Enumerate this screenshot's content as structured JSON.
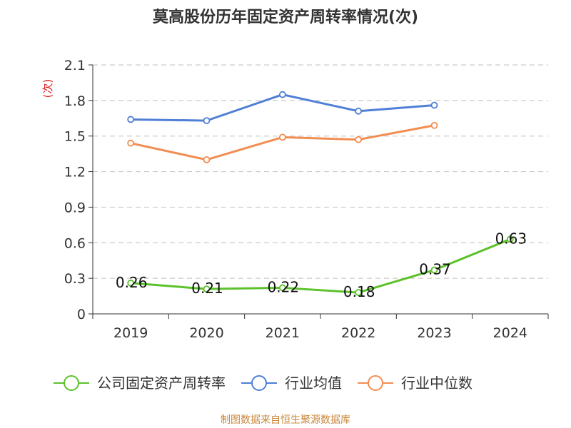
{
  "chart_data": {
    "type": "line",
    "title": "莫高股份历年固定资产周转率情况(次)",
    "ylabel": "(次)",
    "xlabel": "",
    "categories": [
      "2019",
      "2020",
      "2021",
      "2022",
      "2023",
      "2024"
    ],
    "ylim": [
      0,
      2.1
    ],
    "yticks": [
      0,
      0.3,
      0.6,
      0.9,
      1.2,
      1.5,
      1.8,
      2.1
    ],
    "ytick_labels": [
      "0",
      "0.3",
      "0.6",
      "0.9",
      "1.2",
      "1.5",
      "1.8",
      "2.1"
    ],
    "grid": true,
    "legend_position": "bottom",
    "series": [
      {
        "name": "公司固定资产周转率",
        "color": "#5cc22b",
        "values": [
          0.26,
          0.21,
          0.22,
          0.18,
          0.37,
          0.63
        ],
        "labels": [
          "0.26",
          "0.21",
          "0.22",
          "0.18",
          "0.37",
          "0.63"
        ]
      },
      {
        "name": "行业均值",
        "color": "#4f7fd6",
        "values": [
          1.64,
          1.63,
          1.85,
          1.71,
          1.76,
          null
        ]
      },
      {
        "name": "行业中位数",
        "color": "#f28d52",
        "values": [
          1.44,
          1.3,
          1.49,
          1.47,
          1.59,
          null
        ]
      }
    ]
  },
  "source": "制图数据来自恒生聚源数据库"
}
